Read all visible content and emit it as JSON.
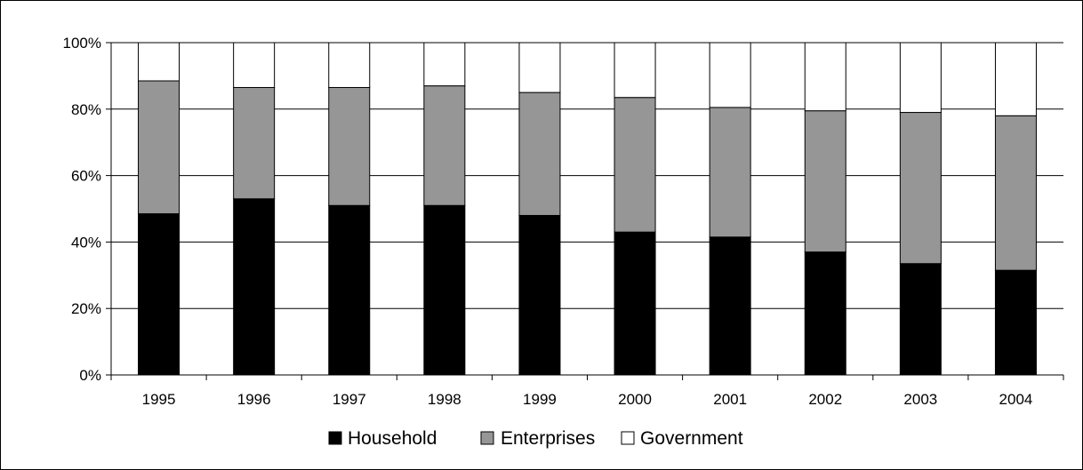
{
  "chart_data": {
    "type": "bar",
    "stacked": true,
    "percent": true,
    "categories": [
      "1995",
      "1996",
      "1997",
      "1998",
      "1999",
      "2000",
      "2001",
      "2002",
      "2003",
      "2004"
    ],
    "series": [
      {
        "name": "Household",
        "color": "#000000",
        "values": [
          48.5,
          53,
          51,
          51,
          48,
          43,
          41.5,
          37,
          33.5,
          31.5
        ]
      },
      {
        "name": "Enterprises",
        "color": "#969696",
        "values": [
          40,
          33.5,
          35.5,
          36,
          37,
          40.5,
          39,
          42.5,
          45.5,
          46.5
        ]
      },
      {
        "name": "Government",
        "color": "#ffffff",
        "values": [
          11.5,
          13.5,
          13.5,
          13,
          15,
          16.5,
          19.5,
          20.5,
          21,
          22
        ]
      }
    ],
    "y_ticks": [
      "0%",
      "20%",
      "40%",
      "60%",
      "80%",
      "100%"
    ],
    "ylim": [
      0,
      100
    ],
    "grid": true,
    "legend_position": "bottom"
  }
}
